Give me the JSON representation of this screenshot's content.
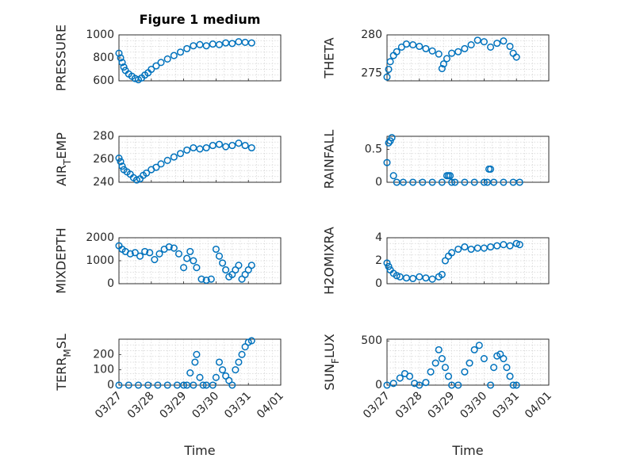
{
  "chart_data": [
    {
      "type": "scatter",
      "title": "Figure 1 medium",
      "xlabel": "",
      "ylabel": "PRESSURE",
      "ylim": [
        600,
        1000
      ],
      "yticks": [
        "600",
        "800",
        "1000"
      ],
      "xticks": [
        "03/27",
        "03/28",
        "03/29",
        "03/30",
        "03/31",
        "04/01"
      ],
      "x_values": [
        0.0,
        0.05,
        0.1,
        0.15,
        0.2,
        0.3,
        0.4,
        0.5,
        0.6,
        0.7,
        0.8,
        0.9,
        1.0,
        1.15,
        1.3,
        1.5,
        1.7,
        1.9,
        2.1,
        2.3,
        2.5,
        2.7,
        2.9,
        3.1,
        3.3,
        3.5,
        3.7,
        3.9,
        4.1
      ],
      "y_values": [
        840,
        800,
        760,
        720,
        690,
        660,
        640,
        620,
        610,
        625,
        650,
        670,
        700,
        730,
        760,
        790,
        820,
        850,
        880,
        905,
        915,
        905,
        920,
        915,
        930,
        925,
        940,
        935,
        930
      ]
    },
    {
      "type": "scatter",
      "title": "",
      "xlabel": "",
      "ylabel": "THETA",
      "ylim": [
        274,
        280
      ],
      "yticks": [
        "275",
        "280"
      ],
      "xticks": [
        "03/27",
        "03/28",
        "03/29",
        "03/30",
        "03/31",
        "04/01"
      ],
      "x_values": [
        0.0,
        0.05,
        0.1,
        0.2,
        0.3,
        0.45,
        0.6,
        0.8,
        1.0,
        1.2,
        1.4,
        1.6,
        1.7,
        1.75,
        1.85,
        2.0,
        2.2,
        2.4,
        2.6,
        2.8,
        3.0,
        3.2,
        3.4,
        3.6,
        3.8,
        3.9,
        4.0
      ],
      "y_values": [
        274.5,
        275.5,
        276.5,
        277.3,
        277.8,
        278.4,
        278.8,
        278.7,
        278.5,
        278.2,
        277.9,
        277.5,
        275.6,
        276.2,
        276.9,
        277.6,
        277.8,
        278.2,
        278.7,
        279.3,
        279.1,
        278.4,
        278.9,
        279.2,
        278.5,
        277.6,
        277.1
      ]
    },
    {
      "type": "scatter",
      "title": "",
      "xlabel": "",
      "ylabel": "AIR_TEMP",
      "ylim": [
        240,
        280
      ],
      "yticks": [
        "240",
        "260",
        "280"
      ],
      "xticks": [
        "03/27",
        "03/28",
        "03/29",
        "03/30",
        "03/31",
        "04/01"
      ],
      "x_values": [
        0.0,
        0.05,
        0.1,
        0.15,
        0.25,
        0.35,
        0.45,
        0.55,
        0.65,
        0.75,
        0.85,
        1.0,
        1.15,
        1.3,
        1.5,
        1.7,
        1.9,
        2.1,
        2.3,
        2.5,
        2.7,
        2.9,
        3.1,
        3.3,
        3.5,
        3.7,
        3.9,
        4.1
      ],
      "y_values": [
        261,
        258,
        254,
        251,
        249,
        247,
        244,
        242,
        243,
        246,
        248,
        251,
        253,
        256,
        259,
        262,
        265,
        268,
        270,
        269,
        270,
        272,
        273,
        271,
        272,
        274,
        272,
        270
      ]
    },
    {
      "type": "scatter",
      "title": "",
      "xlabel": "",
      "ylabel": "RAINFALL",
      "ylim": [
        0,
        0.7
      ],
      "yticks": [
        "0",
        "0.5"
      ],
      "xticks": [
        "03/27",
        "03/28",
        "03/29",
        "03/30",
        "03/31",
        "04/01"
      ],
      "x_values": [
        0.0,
        0.05,
        0.1,
        0.15,
        0.2,
        0.3,
        0.5,
        0.8,
        1.1,
        1.4,
        1.7,
        1.85,
        1.9,
        1.95,
        2.0,
        2.1,
        2.4,
        2.7,
        3.0,
        3.1,
        3.15,
        3.2,
        3.3,
        3.6,
        3.9,
        4.1
      ],
      "y_values": [
        0.3,
        0.6,
        0.63,
        0.68,
        0.1,
        0.0,
        0.0,
        0.0,
        0.0,
        0.0,
        0.0,
        0.1,
        0.1,
        0.1,
        0.0,
        0.0,
        0.0,
        0.0,
        0.0,
        0.0,
        0.2,
        0.2,
        0.0,
        0.0,
        0.0,
        0.0
      ]
    },
    {
      "type": "scatter",
      "title": "",
      "xlabel": "",
      "ylabel": "MIXDEPTH",
      "ylim": [
        0,
        2000
      ],
      "yticks": [
        "0",
        "1000",
        "2000"
      ],
      "xticks": [
        "03/27",
        "03/28",
        "03/29",
        "03/30",
        "03/31",
        "04/01"
      ],
      "x_values": [
        0.0,
        0.1,
        0.2,
        0.35,
        0.5,
        0.65,
        0.8,
        0.95,
        1.1,
        1.25,
        1.4,
        1.55,
        1.7,
        1.85,
        2.0,
        2.1,
        2.2,
        2.3,
        2.4,
        2.55,
        2.7,
        2.85,
        3.0,
        3.1,
        3.2,
        3.3,
        3.4,
        3.5,
        3.6,
        3.7,
        3.8,
        3.9,
        4.0,
        4.1
      ],
      "y_values": [
        1650,
        1500,
        1400,
        1300,
        1350,
        1200,
        1400,
        1350,
        1050,
        1300,
        1500,
        1600,
        1550,
        1300,
        700,
        1100,
        1400,
        1000,
        700,
        200,
        150,
        200,
        1500,
        1200,
        900,
        600,
        300,
        400,
        600,
        800,
        200,
        400,
        600,
        800
      ]
    },
    {
      "type": "scatter",
      "title": "",
      "xlabel": "",
      "ylabel": "H2OMIXRA",
      "ylim": [
        0,
        4
      ],
      "yticks": [
        "0",
        "2",
        "4"
      ],
      "xticks": [
        "03/27",
        "03/28",
        "03/29",
        "03/30",
        "03/31",
        "04/01"
      ],
      "x_values": [
        0.0,
        0.05,
        0.1,
        0.2,
        0.3,
        0.4,
        0.6,
        0.8,
        1.0,
        1.2,
        1.4,
        1.6,
        1.7,
        1.8,
        1.9,
        2.0,
        2.2,
        2.4,
        2.6,
        2.8,
        3.0,
        3.2,
        3.4,
        3.6,
        3.8,
        4.0,
        4.1
      ],
      "y_values": [
        1.8,
        1.5,
        1.2,
        0.9,
        0.7,
        0.6,
        0.5,
        0.45,
        0.6,
        0.5,
        0.4,
        0.6,
        0.8,
        2.0,
        2.4,
        2.7,
        3.0,
        3.2,
        3.0,
        3.1,
        3.1,
        3.2,
        3.3,
        3.4,
        3.3,
        3.5,
        3.4
      ]
    },
    {
      "type": "scatter",
      "title": "",
      "xlabel": "Time",
      "ylabel": "TERR_MSL",
      "ylim": [
        0,
        300
      ],
      "yticks": [
        "0",
        "100",
        "200"
      ],
      "xticks": [
        "03/27",
        "03/28",
        "03/29",
        "03/30",
        "03/31",
        "04/01"
      ],
      "x_values": [
        0.0,
        0.3,
        0.6,
        0.9,
        1.2,
        1.5,
        1.8,
        2.0,
        2.1,
        2.2,
        2.3,
        2.35,
        2.4,
        2.5,
        2.6,
        2.7,
        2.9,
        3.0,
        3.1,
        3.2,
        3.3,
        3.4,
        3.5,
        3.6,
        3.7,
        3.8,
        3.9,
        4.0,
        4.1
      ],
      "y_values": [
        0,
        0,
        0,
        0,
        0,
        0,
        0,
        0,
        0,
        80,
        0,
        150,
        200,
        50,
        0,
        0,
        0,
        50,
        150,
        100,
        60,
        30,
        0,
        100,
        150,
        200,
        250,
        280,
        290
      ]
    },
    {
      "type": "scatter",
      "title": "",
      "xlabel": "Time",
      "ylabel": "SUN_FLUX",
      "ylim": [
        0,
        520
      ],
      "yticks": [
        "0",
        "500"
      ],
      "xticks": [
        "03/27",
        "03/28",
        "03/29",
        "03/30",
        "03/31",
        "04/01"
      ],
      "x_values": [
        0.0,
        0.2,
        0.4,
        0.55,
        0.7,
        0.85,
        1.0,
        1.2,
        1.35,
        1.5,
        1.6,
        1.7,
        1.8,
        1.9,
        2.0,
        2.2,
        2.4,
        2.55,
        2.7,
        2.85,
        3.0,
        3.2,
        3.3,
        3.4,
        3.5,
        3.6,
        3.7,
        3.8,
        3.9,
        4.0
      ],
      "y_values": [
        0,
        20,
        80,
        130,
        100,
        20,
        0,
        30,
        150,
        250,
        400,
        300,
        200,
        100,
        0,
        0,
        150,
        250,
        400,
        450,
        300,
        0,
        200,
        330,
        350,
        300,
        200,
        100,
        0,
        0
      ]
    }
  ]
}
